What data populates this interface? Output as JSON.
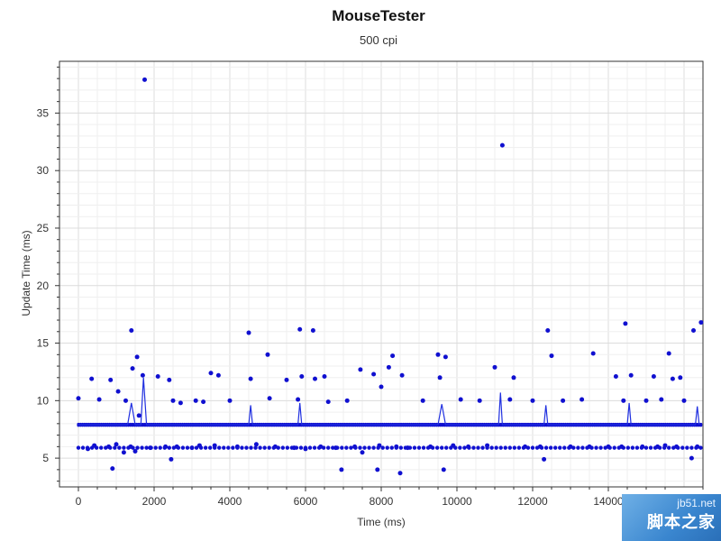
{
  "chart_data": {
    "type": "scatter",
    "title": "MouseTester",
    "subtitle": "500 cpi",
    "xlabel": "Time (ms)",
    "ylabel": "Update Time (ms)",
    "xlim": [
      -500,
      16500
    ],
    "ylim": [
      2.5,
      39.5
    ],
    "xticks": [
      0,
      2000,
      4000,
      6000,
      8000,
      10000,
      12000,
      14000
    ],
    "yticks": [
      5,
      10,
      15,
      20,
      25,
      30,
      35
    ],
    "grid": true,
    "legend": "none",
    "series": [
      {
        "style": "points",
        "color": "#1010d0",
        "x": [
          0,
          250,
          350,
          420,
          550,
          800,
          850,
          900,
          1000,
          1050,
          1200,
          1250,
          1380,
          1400,
          1430,
          1500,
          1550,
          1600,
          1700,
          1750,
          1900,
          2100,
          2300,
          2400,
          2450,
          2500,
          2600,
          2700,
          3000,
          3100,
          3200,
          3300,
          3500,
          3600,
          3700,
          4000,
          4200,
          4500,
          4550,
          4700,
          5000,
          5050,
          5200,
          5500,
          5700,
          5800,
          5850,
          5900,
          6000,
          6200,
          6250,
          6400,
          6500,
          6600,
          6800,
          6950,
          7100,
          7300,
          7450,
          7500,
          7800,
          7900,
          7950,
          8000,
          8200,
          8300,
          8400,
          8500,
          8550,
          8700,
          9100,
          9300,
          9500,
          9550,
          9650,
          9700,
          9900,
          10100,
          10300,
          10600,
          10800,
          11000,
          11200,
          11400,
          11500,
          11800,
          12000,
          12200,
          12300,
          12400,
          12500,
          12800,
          13000,
          13300,
          13500,
          13600,
          14000,
          14200,
          14350,
          14400,
          14450,
          14600,
          14900,
          15000,
          15200,
          15300,
          15400,
          15500,
          15600,
          15700,
          15800,
          15900,
          16000,
          16200,
          16250,
          16350,
          16450
        ],
        "y": [
          10.2,
          5.8,
          11.9,
          6.1,
          10.1,
          6.0,
          11.8,
          4.1,
          6.2,
          10.8,
          5.5,
          10.0,
          6.0,
          16.1,
          12.8,
          5.6,
          13.8,
          8.7,
          12.2,
          37.9,
          5.9,
          12.1,
          6.0,
          11.8,
          4.9,
          10.0,
          6.0,
          9.8,
          5.9,
          10.0,
          6.1,
          9.9,
          12.4,
          6.1,
          12.2,
          10.0,
          6.0,
          15.9,
          11.9,
          6.2,
          14.0,
          10.2,
          6.0,
          11.8,
          5.9,
          10.1,
          16.2,
          12.1,
          5.8,
          16.1,
          11.9,
          6.0,
          12.1,
          9.9,
          5.9,
          4.0,
          10.0,
          6.0,
          12.7,
          5.5,
          12.3,
          4.0,
          6.1,
          11.2,
          12.9,
          13.9,
          6.0,
          3.7,
          12.2,
          5.9,
          10.0,
          6.0,
          14.0,
          12.0,
          4.0,
          13.8,
          6.1,
          10.1,
          6.0,
          10.0,
          6.1,
          12.9,
          32.2,
          10.1,
          12.0,
          6.0,
          10.0,
          6.0,
          4.9,
          16.1,
          13.9,
          10.0,
          6.0,
          10.1,
          6.0,
          14.1,
          6.0,
          12.1,
          6.0,
          10.0,
          16.7,
          12.2,
          6.0,
          10.0,
          12.1,
          6.0,
          10.1,
          6.1,
          14.1,
          11.9,
          6.0,
          12.0,
          10.0,
          5.0,
          16.1,
          6.0,
          16.8
        ]
      },
      {
        "style": "line",
        "color": "#2030e0",
        "x": [
          0,
          1300,
          1400,
          1500,
          1650,
          1720,
          1800,
          1900,
          4500,
          4550,
          4600,
          5800,
          5850,
          5900,
          9500,
          9600,
          9700,
          11100,
          11150,
          11200,
          12300,
          12350,
          12400,
          14500,
          14550,
          14600,
          16300,
          16350,
          16400
        ],
        "y": [
          7.9,
          7.9,
          9.8,
          7.9,
          7.9,
          12.0,
          7.9,
          7.9,
          7.9,
          9.6,
          7.9,
          7.9,
          9.8,
          7.9,
          7.9,
          9.7,
          7.9,
          7.9,
          10.7,
          7.9,
          7.9,
          9.6,
          7.9,
          7.9,
          9.8,
          7.9,
          7.9,
          9.5,
          7.9
        ]
      }
    ],
    "dense_bands": [
      6.0,
      7.8,
      8.0
    ]
  },
  "watermark": {
    "top": "jb51.net",
    "bottom": "脚本之家"
  }
}
